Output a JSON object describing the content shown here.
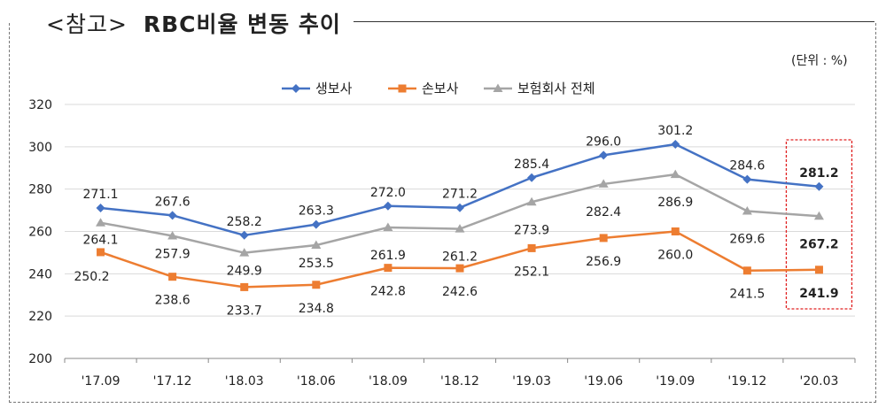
{
  "header": {
    "title_bracket": "<참고>",
    "title_main": "RBC비율 변동 추이"
  },
  "unit_label": "(단위 : %)",
  "chart_data": {
    "type": "line",
    "categories": [
      "'17.09",
      "'17.12",
      "'18.03",
      "'18.06",
      "'18.09",
      "'18.12",
      "'19.03",
      "'19.06",
      "'19.09",
      "'19.12",
      "'20.03"
    ],
    "series": [
      {
        "name": "생보사",
        "color": "#4472C4",
        "marker": "diamond",
        "values": [
          271.1,
          267.6,
          258.2,
          263.3,
          272.0,
          271.2,
          285.4,
          296.0,
          301.2,
          284.6,
          281.2
        ],
        "labels": [
          "271.1",
          "267.6",
          "258.2",
          "263.3",
          "272.0",
          "271.2",
          "285.4",
          "296.0",
          "301.2",
          "284.6",
          "281.2"
        ]
      },
      {
        "name": "손보사",
        "color": "#ED7D31",
        "marker": "square",
        "values": [
          250.2,
          238.6,
          233.7,
          234.8,
          242.8,
          242.6,
          252.1,
          256.9,
          260.0,
          241.5,
          241.9
        ],
        "labels": [
          "250.2",
          "238.6",
          "233.7",
          "234.8",
          "242.8",
          "242.6",
          "252.1",
          "256.9",
          "260.0",
          "241.5",
          "241.9"
        ]
      },
      {
        "name": "보험회사 전체",
        "color": "#A5A5A5",
        "marker": "triangle",
        "values": [
          264.1,
          257.9,
          249.9,
          253.5,
          261.9,
          261.2,
          273.9,
          282.4,
          286.9,
          269.6,
          267.2
        ],
        "labels": [
          "264.1",
          "257.9",
          "249.9",
          "253.5",
          "261.9",
          "261.2",
          "273.9",
          "282.4",
          "286.9",
          "269.6",
          "267.2"
        ]
      }
    ],
    "ylim": [
      200,
      320
    ],
    "yticks": [
      200,
      220,
      240,
      260,
      280,
      300,
      320
    ],
    "ytick_labels": [
      "200",
      "220",
      "240",
      "260",
      "280",
      "300",
      "320"
    ],
    "grid": true,
    "legend_position": "top-center",
    "highlight_last_category": true
  }
}
